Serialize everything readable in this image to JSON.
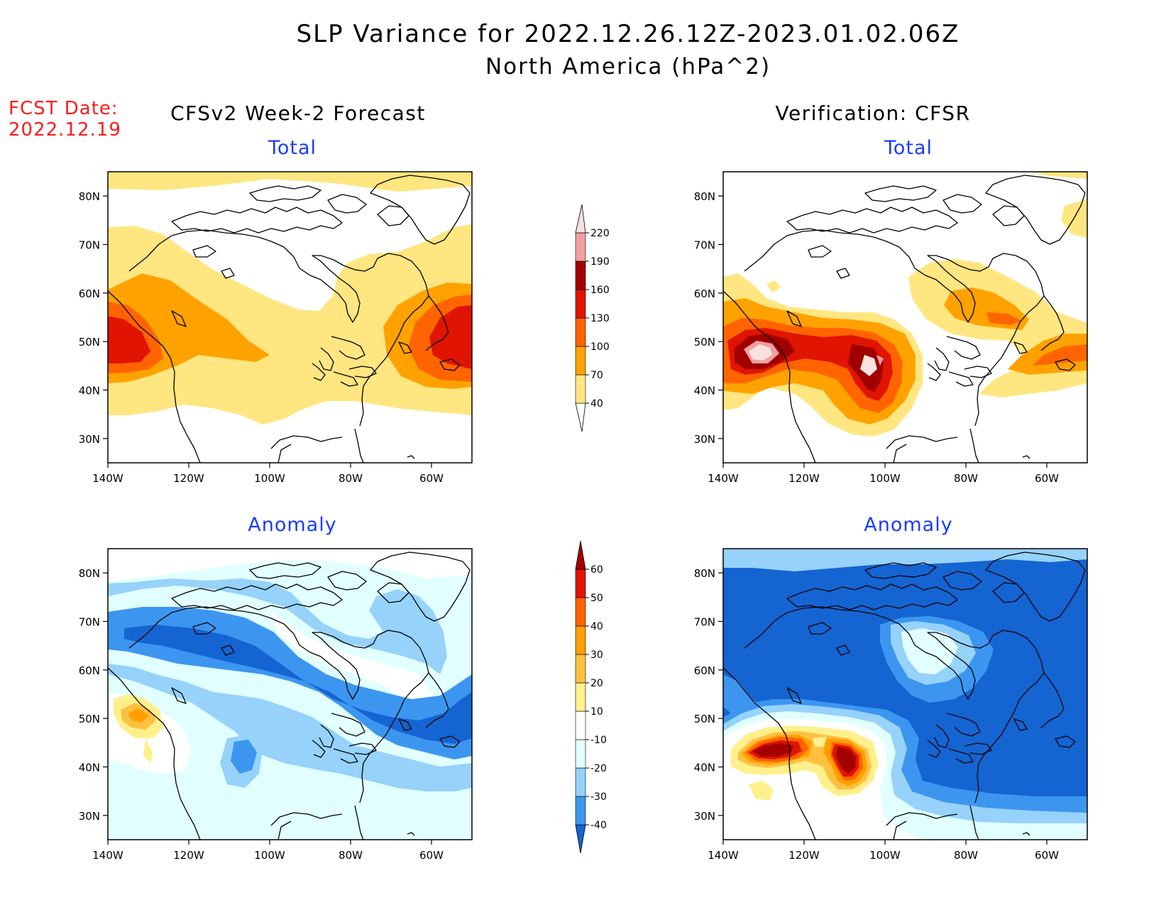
{
  "title": "SLP Variance for 2022.12.26.12Z-2023.01.02.06Z",
  "subtitle": "North America (hPa^2)",
  "fcst_label": "FCST Date:",
  "fcst_date": "2022.12.19",
  "left_column_title": "CFSv2 Week-2 Forecast",
  "right_column_title": "Verification: CFSR",
  "panel_titles": {
    "forecast_total": "Total",
    "forecast_anomaly": "Anomaly",
    "verification_total": "Total",
    "verification_anomaly": "Anomaly"
  },
  "axes": {
    "lon_ticks": [
      "140W",
      "120W",
      "100W",
      "80W",
      "60W"
    ],
    "lat_ticks": [
      "80N",
      "70N",
      "60N",
      "50N",
      "40N",
      "30N"
    ],
    "lon_range": [
      -140,
      -50
    ],
    "lat_range": [
      25,
      85
    ]
  },
  "total_colorbar": {
    "levels": [
      "40",
      "70",
      "100",
      "130",
      "160",
      "190",
      "220"
    ],
    "colors": [
      "#ffffff",
      "#ffe680",
      "#ffa200",
      "#ff6400",
      "#e01400",
      "#a00000",
      "#f0a0a0",
      "#fbe0e0"
    ]
  },
  "anomaly_colorbar": {
    "levels": [
      "-40",
      "-30",
      "-20",
      "-10",
      "10",
      "20",
      "30",
      "40",
      "50",
      "60"
    ],
    "colors": [
      "#1464d2",
      "#3c96f0",
      "#96d2fa",
      "#e1ffff",
      "#ffffff",
      "#fff08c",
      "#ffc040",
      "#ffa000",
      "#ff6400",
      "#e01400",
      "#a50000"
    ]
  },
  "colors": {
    "title_text": "#000000",
    "fcst_text": "#ff1a1a",
    "panel_title_text": "#1a3cff"
  }
}
